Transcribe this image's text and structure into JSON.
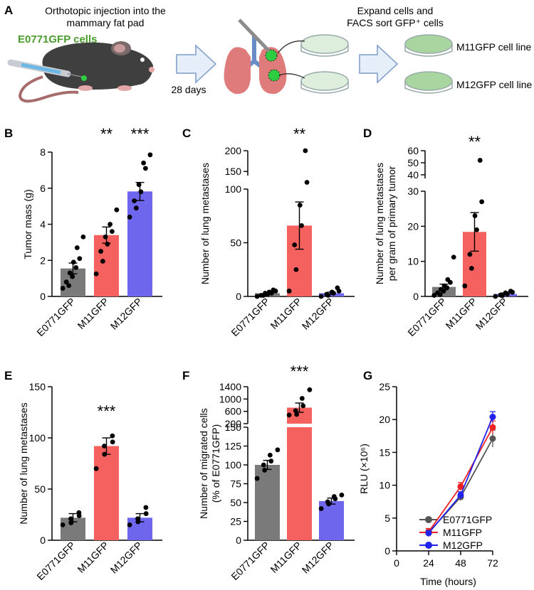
{
  "schematic": {
    "panel_label": "A",
    "injection_text": [
      "Orthotopic injection into the",
      "mammary fat pad"
    ],
    "cell_label": "E0771GFP cells",
    "days_label": "28 days",
    "expand_text": [
      "Expand cells and",
      "FACS sort GFP⁺ cells"
    ],
    "line1": "M11GFP cell line",
    "line2": "M12GFP cell line"
  },
  "colors": {
    "gray": "#7a7a7a",
    "red": "#f4615f",
    "blue": "#6f66ee",
    "green_text": "#4a9c2d"
  },
  "chart_data": [
    {
      "type": "bar",
      "panel": "B",
      "categories": [
        "E0771GFP",
        "M11GFP",
        "M12GFP"
      ],
      "values": [
        1.55,
        3.4,
        5.82
      ],
      "errors": [
        0.3,
        0.45,
        0.5
      ],
      "points": [
        [
          0.45,
          0.6,
          0.8,
          1.1,
          1.3,
          1.6,
          1.9,
          2.1,
          2.7,
          3.3
        ],
        [
          1.25,
          1.95,
          2.5,
          2.9,
          3.3,
          3.6,
          4.0,
          4.8
        ],
        [
          4.4,
          4.9,
          5.3,
          5.8,
          6.2,
          7.1,
          7.4,
          7.85
        ]
      ],
      "significance": [
        "",
        "**",
        "***"
      ],
      "ylabel": "Tumor mass (g)",
      "ylim": [
        0,
        8
      ],
      "yticks": [
        "0",
        "2",
        "4",
        "6",
        "8"
      ]
    },
    {
      "type": "bar",
      "panel": "C",
      "categories": [
        "E0771GFP",
        "M11GFP",
        "M12GFP"
      ],
      "values": [
        3,
        66,
        3
      ],
      "errors": [
        1,
        22,
        1
      ],
      "points": [
        [
          0,
          1,
          1,
          2,
          3,
          3,
          4,
          5,
          6
        ],
        [
          5,
          25,
          48,
          66,
          85,
          127,
          200
        ],
        [
          0,
          1,
          2,
          3,
          4,
          5,
          8
        ]
      ],
      "significance": [
        "",
        "**",
        ""
      ],
      "ylabel": "Number of lung metastases",
      "ylim_lower": [
        0,
        100
      ],
      "ylim_upper": [
        140,
        200
      ],
      "yticks": [
        "0",
        "50",
        "100",
        "150",
        "200"
      ]
    },
    {
      "type": "bar",
      "panel": "D",
      "categories": [
        "E0771GFP",
        "M11GFP",
        "M12GFP"
      ],
      "values": [
        2.7,
        18.4,
        0.7
      ],
      "errors": [
        0.8,
        5.5,
        0.3
      ],
      "points": [
        [
          0.3,
          0.5,
          1,
          1.5,
          2,
          2.5,
          3,
          4,
          4.8,
          11.2
        ],
        [
          3,
          8,
          12,
          19,
          23,
          27,
          52
        ],
        [
          0,
          0.2,
          0.4,
          0.7,
          1,
          1.2,
          1.5
        ]
      ],
      "significance": [
        "",
        "**",
        ""
      ],
      "ylabel": "Number of lung metastases per gram of primary tumor",
      "ylabel_lines": [
        "Number of lung metastases",
        "per gram of primary tumor"
      ],
      "ylim_lower": [
        0,
        30
      ],
      "ylim_upper": [
        37,
        60
      ],
      "yticks": [
        "0",
        "10",
        "20",
        "30",
        "40",
        "50",
        "60"
      ]
    },
    {
      "type": "bar",
      "panel": "E",
      "categories": [
        "E0771GFP",
        "M11GFP",
        "M12GFP"
      ],
      "values": [
        22,
        92,
        22
      ],
      "errors": [
        4,
        8,
        4
      ],
      "points": [
        [
          15,
          17,
          21,
          24,
          27
        ],
        [
          70,
          84,
          92,
          96,
          102
        ],
        [
          15,
          18,
          21,
          26,
          32
        ]
      ],
      "significance": [
        "",
        "***",
        ""
      ],
      "ylabel": "Number of lung metastases",
      "ylim": [
        0,
        150
      ],
      "yticks": [
        "0",
        "50",
        "100",
        "150"
      ]
    },
    {
      "type": "bar",
      "panel": "F",
      "categories": [
        "E0771GFP",
        "M11GFP",
        "M12GFP"
      ],
      "values": [
        100,
        720,
        52
      ],
      "errors": [
        6,
        150,
        4
      ],
      "points": [
        [
          82,
          93,
          100,
          105,
          113,
          120
        ],
        [
          480,
          500,
          620,
          780,
          1020,
          1300
        ],
        [
          42,
          48,
          51,
          55,
          58,
          60
        ]
      ],
      "significance": [
        "",
        "***",
        ""
      ],
      "ylabel": "Number of migrated cells (% of E0771GFP)",
      "ylabel_lines": [
        "Number of migrated cells",
        "(% of E0771GFP)"
      ],
      "ylim_lower": [
        0,
        150
      ],
      "ylim_upper": [
        200,
        1400
      ],
      "yticks": [
        "0",
        "25",
        "50",
        "75",
        "100",
        "125",
        "150",
        "200",
        "600",
        "1000",
        "1400"
      ]
    },
    {
      "type": "line",
      "panel": "G",
      "x": [
        24,
        48,
        72
      ],
      "series": [
        {
          "name": "E0771GFP",
          "values": [
            2.8,
            8.2,
            17.1
          ],
          "errors": [
            0.6,
            0.5,
            1.3
          ]
        },
        {
          "name": "M11GFP",
          "values": [
            2.9,
            9.8,
            18.8
          ],
          "errors": [
            0.5,
            0.6,
            1.0
          ]
        },
        {
          "name": "M12GFP",
          "values": [
            2.7,
            8.5,
            20.4
          ],
          "errors": [
            0.4,
            0.5,
            0.8
          ]
        }
      ],
      "xlabel": "Time (hours)",
      "ylabel": "RLU (×10⁶)",
      "xlim": [
        0,
        72
      ],
      "ylim": [
        0,
        25
      ],
      "xticks": [
        "0",
        "24",
        "48",
        "72"
      ],
      "yticks": [
        "0",
        "5",
        "10",
        "15",
        "20",
        "25"
      ],
      "legend": "bottom-right",
      "series_colors": [
        "#555555",
        "#ee2222",
        "#2222ee"
      ]
    }
  ]
}
